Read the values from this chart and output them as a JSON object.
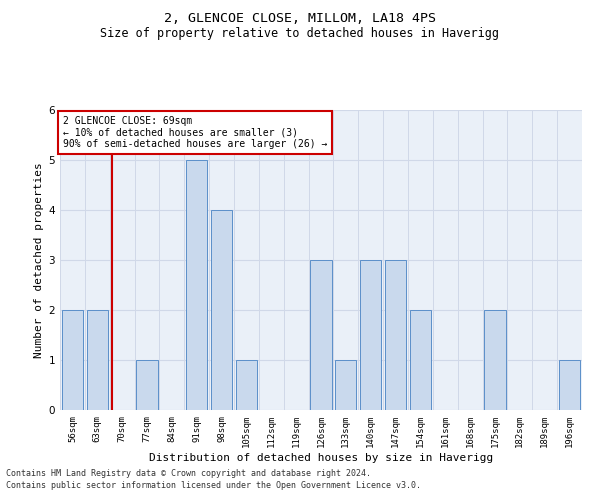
{
  "title_line1": "2, GLENCOE CLOSE, MILLOM, LA18 4PS",
  "title_line2": "Size of property relative to detached houses in Haverigg",
  "xlabel": "Distribution of detached houses by size in Haverigg",
  "ylabel": "Number of detached properties",
  "categories": [
    "56sqm",
    "63sqm",
    "70sqm",
    "77sqm",
    "84sqm",
    "91sqm",
    "98sqm",
    "105sqm",
    "112sqm",
    "119sqm",
    "126sqm",
    "133sqm",
    "140sqm",
    "147sqm",
    "154sqm",
    "161sqm",
    "168sqm",
    "175sqm",
    "182sqm",
    "189sqm",
    "196sqm"
  ],
  "values": [
    2,
    2,
    0,
    1,
    0,
    5,
    4,
    1,
    0,
    0,
    3,
    1,
    3,
    3,
    2,
    0,
    0,
    2,
    0,
    0,
    1
  ],
  "bar_color": "#c9d9ed",
  "bar_edge_color": "#5b8fc9",
  "vline_color": "#cc0000",
  "annotation_title": "2 GLENCOE CLOSE: 69sqm",
  "annotation_line2": "← 10% of detached houses are smaller (3)",
  "annotation_line3": "90% of semi-detached houses are larger (26) →",
  "annotation_box_color": "#cc0000",
  "ylim": [
    0,
    6
  ],
  "yticks": [
    0,
    1,
    2,
    3,
    4,
    5,
    6
  ],
  "grid_color": "#d0d8e8",
  "bg_color": "#eaf0f8",
  "footer_line1": "Contains HM Land Registry data © Crown copyright and database right 2024.",
  "footer_line2": "Contains public sector information licensed under the Open Government Licence v3.0.",
  "title_fontsize": 9.5,
  "subtitle_fontsize": 8.5,
  "axis_label_fontsize": 8,
  "tick_fontsize": 6.5,
  "annot_fontsize": 7,
  "footer_fontsize": 6
}
